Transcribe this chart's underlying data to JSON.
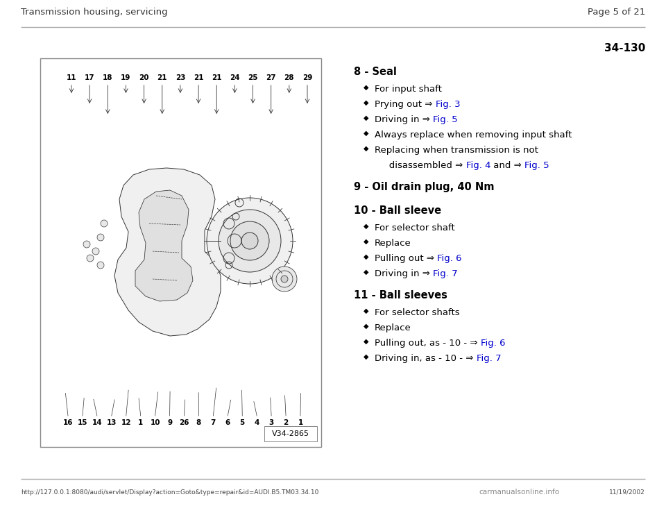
{
  "bg_color": "#ffffff",
  "header_left": "Transmission housing, servicing",
  "header_right": "Page 5 of 21",
  "section_label": "34-130",
  "footer_url": "http://127.0.0.1:8080/audi/servlet/Display?action=Goto&type=repair&id=AUDI.B5.TM03.34.10",
  "footer_date": "11/19/2002",
  "footer_logo": "carmanualsonline.info",
  "gray_line_color": "#aaaaaa",
  "text_color": "#000000",
  "link_color": "#0000cc",
  "diagram_label": "V34-2865",
  "numbers_top": [
    "11",
    "17",
    "18",
    "19",
    "20",
    "21",
    "23",
    "21",
    "21",
    "24",
    "25",
    "27",
    "28",
    "29"
  ],
  "numbers_bottom": [
    "16",
    "15",
    "14",
    "13",
    "12",
    "1",
    "10",
    "9",
    "26",
    "8",
    "7",
    "6",
    "5",
    "4",
    "3",
    "2",
    "1"
  ],
  "items": [
    {
      "id": "8",
      "title": "Seal",
      "indent": true,
      "bullets": [
        [
          {
            "t": "For input shaft",
            "c": "black"
          }
        ],
        [
          {
            "t": "Prying out ⇒ ",
            "c": "black"
          },
          {
            "t": "Fig. 3",
            "c": "blue"
          }
        ],
        [
          {
            "t": "Driving in ⇒ ",
            "c": "black"
          },
          {
            "t": "Fig. 5",
            "c": "blue"
          }
        ],
        [
          {
            "t": "Always replace when removing input shaft",
            "c": "black"
          }
        ],
        [
          {
            "t": "Replacing when transmission is not",
            "c": "black"
          }
        ],
        [
          {
            "t": "   disassembled ⇒ ",
            "c": "black"
          },
          {
            "t": "Fig. 4",
            "c": "blue"
          },
          {
            "t": " and ⇒ ",
            "c": "black"
          },
          {
            "t": "Fig. 5",
            "c": "blue"
          }
        ]
      ],
      "last_bullet_at": 4
    },
    {
      "id": "9",
      "title": "Oil drain plug, 40 Nm",
      "indent": false,
      "bullets": []
    },
    {
      "id": "10",
      "title": "Ball sleeve",
      "indent": true,
      "bullets": [
        [
          {
            "t": "For selector shaft",
            "c": "black"
          }
        ],
        [
          {
            "t": "Replace",
            "c": "black"
          }
        ],
        [
          {
            "t": "Pulling out ⇒ ",
            "c": "black"
          },
          {
            "t": "Fig. 6",
            "c": "blue"
          }
        ],
        [
          {
            "t": "Driving in ⇒ ",
            "c": "black"
          },
          {
            "t": "Fig. 7",
            "c": "blue"
          }
        ]
      ]
    },
    {
      "id": "11",
      "title": "Ball sleeves",
      "indent": true,
      "bullets": [
        [
          {
            "t": "For selector shafts",
            "c": "black"
          }
        ],
        [
          {
            "t": "Replace",
            "c": "black"
          }
        ],
        [
          {
            "t": "Pulling out, as - 10 - ⇒ ",
            "c": "black"
          },
          {
            "t": "Fig. 6",
            "c": "blue"
          }
        ],
        [
          {
            "t": "Driving in, as - 10 - ⇒ ",
            "c": "black"
          },
          {
            "t": "Fig. 7",
            "c": "blue"
          }
        ]
      ]
    }
  ]
}
